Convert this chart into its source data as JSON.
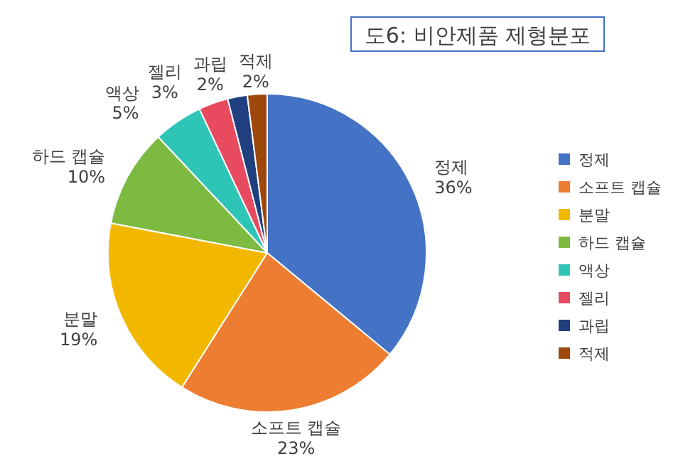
{
  "chart_data": {
    "type": "pie",
    "title": "도6: 비안제품 제형분포",
    "categories": [
      "정제",
      "소프트 캡슐",
      "분말",
      "하드 캡슐",
      "액상",
      "젤리",
      "과립",
      "적제"
    ],
    "values": [
      36,
      23,
      19,
      10,
      5,
      3,
      2,
      2
    ],
    "colors": [
      "#4472c4",
      "#ed7d31",
      "#f2b800",
      "#7cba42",
      "#2ec4b6",
      "#e84a5f",
      "#203f7e",
      "#9e480e"
    ],
    "legend": "right",
    "value_labels": [
      "36%",
      "23%",
      "19%",
      "10%",
      "5%",
      "3%",
      "2%",
      "2%"
    ]
  }
}
